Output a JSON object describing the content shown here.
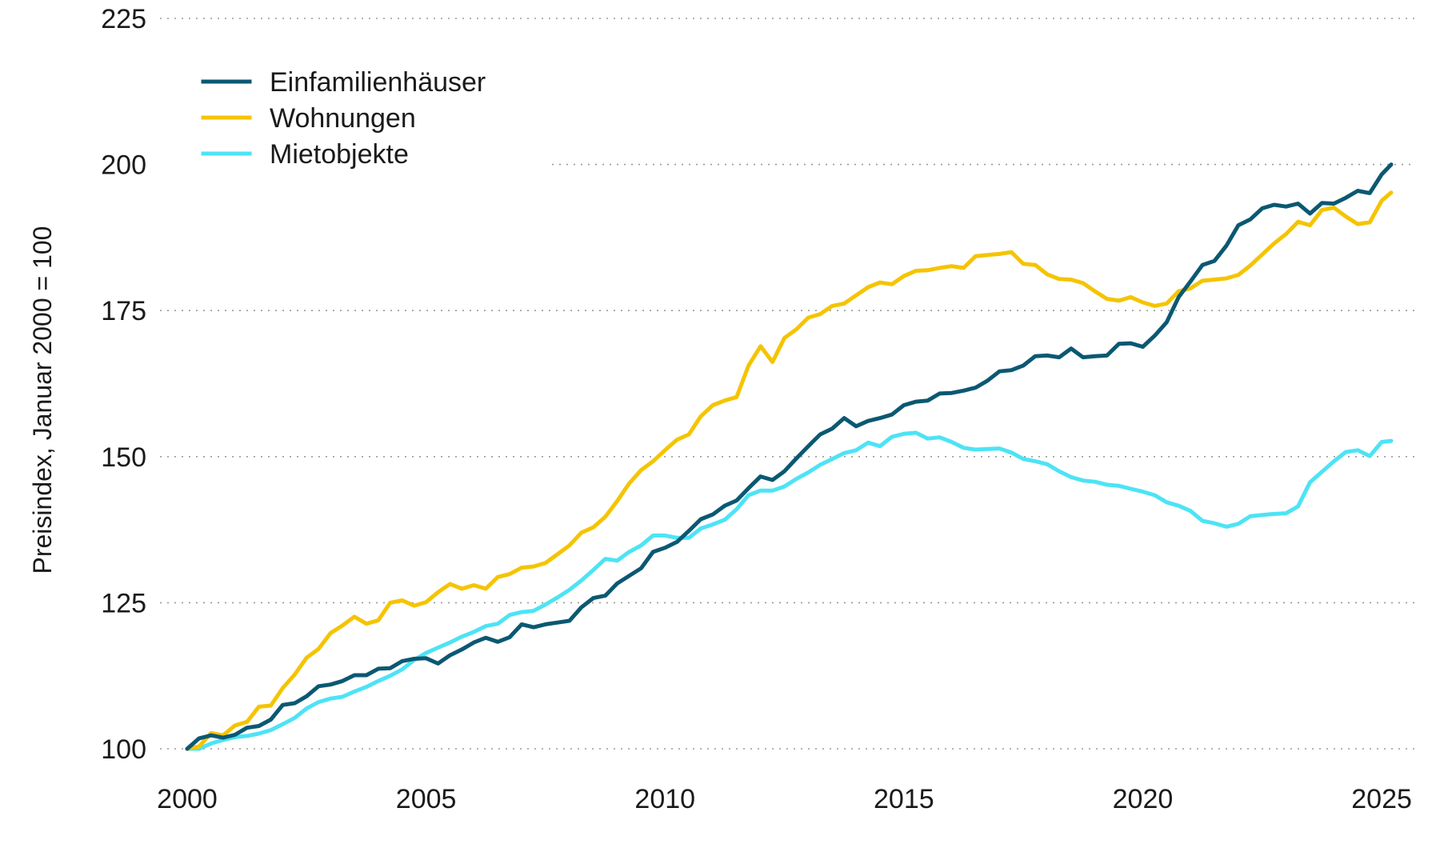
{
  "chart_data": {
    "type": "line",
    "title": "",
    "xlabel": "",
    "ylabel": "Preisindex, Januar 2000 = 100",
    "xlim": [
      2000,
      2025.3
    ],
    "ylim": [
      100,
      225
    ],
    "grid": true,
    "legend_position": "top-left",
    "x_ticks": [
      {
        "value": 2000,
        "label": "2000"
      },
      {
        "value": 2005,
        "label": "2005"
      },
      {
        "value": 2010,
        "label": "2010"
      },
      {
        "value": 2015,
        "label": "2015"
      },
      {
        "value": 2020,
        "label": "2020"
      },
      {
        "value": 2025,
        "label": "2025"
      }
    ],
    "y_ticks": [
      {
        "value": 100,
        "label": "100"
      },
      {
        "value": 125,
        "label": "125"
      },
      {
        "value": 150,
        "label": "150"
      },
      {
        "value": 175,
        "label": "175"
      },
      {
        "value": 200,
        "label": "200"
      },
      {
        "value": 225,
        "label": "225"
      }
    ],
    "series": [
      {
        "name": "Einfamilienhäuser",
        "color": "#0b5872",
        "x": [
          2000,
          2000.25,
          2000.5,
          2000.75,
          2001,
          2001.25,
          2001.5,
          2001.75,
          2002,
          2002.25,
          2002.5,
          2002.75,
          2003,
          2003.25,
          2003.5,
          2003.75,
          2004,
          2004.25,
          2004.5,
          2004.75,
          2005,
          2005.25,
          2005.5,
          2005.75,
          2006,
          2006.25,
          2006.5,
          2006.75,
          2007,
          2007.25,
          2007.5,
          2007.75,
          2008,
          2008.25,
          2008.5,
          2008.75,
          2009,
          2009.25,
          2009.5,
          2009.75,
          2010,
          2010.25,
          2010.5,
          2010.75,
          2011,
          2011.25,
          2011.5,
          2011.75,
          2012,
          2012.25,
          2012.5,
          2012.75,
          2013,
          2013.25,
          2013.5,
          2013.75,
          2014,
          2014.25,
          2014.5,
          2014.75,
          2015,
          2015.25,
          2015.5,
          2015.75,
          2016,
          2016.25,
          2016.5,
          2016.75,
          2017,
          2017.25,
          2017.5,
          2017.75,
          2018,
          2018.25,
          2018.5,
          2018.75,
          2019,
          2019.25,
          2019.5,
          2019.75,
          2020,
          2020.25,
          2020.5,
          2020.75,
          2021,
          2021.25,
          2021.5,
          2021.75,
          2022,
          2022.25,
          2022.5,
          2022.75,
          2023,
          2023.25,
          2023.5,
          2023.75,
          2024,
          2024.25,
          2024.5,
          2024.75,
          2025,
          2025.2
        ],
        "values": [
          100.0,
          101.8,
          102.3,
          101.9,
          102.4,
          103.6,
          103.9,
          105.0,
          107.5,
          107.8,
          109.0,
          110.7,
          111.0,
          111.6,
          112.6,
          112.6,
          113.7,
          113.8,
          115.0,
          115.4,
          115.5,
          114.6,
          116.0,
          117.0,
          118.2,
          119.0,
          118.3,
          119.1,
          121.3,
          120.8,
          121.3,
          121.6,
          121.9,
          124.2,
          125.8,
          126.2,
          128.3,
          129.6,
          130.9,
          133.7,
          134.4,
          135.4,
          137.3,
          139.3,
          140.1,
          141.6,
          142.5,
          144.6,
          146.6,
          146.0,
          147.5,
          149.7,
          151.8,
          153.8,
          154.8,
          156.6,
          155.2,
          156.1,
          156.6,
          157.2,
          158.8,
          159.4,
          159.6,
          160.8,
          160.9,
          161.3,
          161.8,
          163.0,
          164.6,
          164.8,
          165.6,
          167.2,
          167.3,
          167.0,
          168.5,
          167.0,
          167.2,
          167.3,
          169.3,
          169.4,
          168.8,
          170.7,
          173.0,
          177.3,
          180.0,
          182.8,
          183.5,
          186.1,
          189.6,
          190.6,
          192.5,
          193.1,
          192.8,
          193.3,
          191.6,
          193.4,
          193.3,
          194.3,
          195.5,
          195.1,
          198.3,
          200.0
        ]
      },
      {
        "name": "Wohnungen",
        "color": "#f5c400",
        "x": [
          2000,
          2000.25,
          2000.5,
          2000.75,
          2001,
          2001.25,
          2001.5,
          2001.75,
          2002,
          2002.25,
          2002.5,
          2002.75,
          2003,
          2003.25,
          2003.5,
          2003.75,
          2004,
          2004.25,
          2004.5,
          2004.75,
          2005,
          2005.25,
          2005.5,
          2005.75,
          2006,
          2006.25,
          2006.5,
          2006.75,
          2007,
          2007.25,
          2007.5,
          2007.75,
          2008,
          2008.25,
          2008.5,
          2008.75,
          2009,
          2009.25,
          2009.5,
          2009.75,
          2010,
          2010.25,
          2010.5,
          2010.75,
          2011,
          2011.25,
          2011.5,
          2011.75,
          2012,
          2012.25,
          2012.5,
          2012.75,
          2013,
          2013.25,
          2013.5,
          2013.75,
          2014,
          2014.25,
          2014.5,
          2014.75,
          2015,
          2015.25,
          2015.5,
          2015.75,
          2016,
          2016.25,
          2016.5,
          2016.75,
          2017,
          2017.25,
          2017.5,
          2017.75,
          2018,
          2018.25,
          2018.5,
          2018.75,
          2019,
          2019.25,
          2019.5,
          2019.75,
          2020,
          2020.25,
          2020.5,
          2020.75,
          2021,
          2021.25,
          2021.5,
          2021.75,
          2022,
          2022.25,
          2022.5,
          2022.75,
          2023,
          2023.25,
          2023.5,
          2023.75,
          2024,
          2024.25,
          2024.5,
          2024.75,
          2025,
          2025.2
        ],
        "values": [
          100.0,
          100.4,
          102.7,
          102.3,
          104.0,
          104.6,
          107.2,
          107.4,
          110.4,
          112.7,
          115.6,
          117.1,
          119.8,
          121.1,
          122.6,
          121.4,
          122.0,
          125.0,
          125.4,
          124.5,
          125.1,
          126.8,
          128.2,
          127.4,
          128.0,
          127.4,
          129.4,
          129.9,
          131.0,
          131.2,
          131.8,
          133.3,
          134.8,
          137.0,
          137.9,
          139.7,
          142.4,
          145.4,
          147.7,
          149.2,
          151.1,
          152.9,
          153.8,
          156.9,
          158.8,
          159.6,
          160.2,
          165.6,
          168.9,
          166.2,
          170.3,
          171.8,
          173.8,
          174.4,
          175.8,
          176.2,
          177.6,
          179.0,
          179.8,
          179.5,
          180.9,
          181.8,
          181.9,
          182.3,
          182.6,
          182.3,
          184.3,
          184.5,
          184.7,
          185.0,
          183.0,
          182.8,
          181.2,
          180.4,
          180.3,
          179.7,
          178.3,
          177.0,
          176.7,
          177.3,
          176.4,
          175.8,
          176.2,
          178.3,
          178.8,
          180.1,
          180.3,
          180.5,
          181.1,
          182.7,
          184.6,
          186.5,
          188.1,
          190.2,
          189.6,
          192.2,
          192.6,
          191.1,
          189.8,
          190.1,
          193.8,
          195.2
        ]
      },
      {
        "name": "Mietobjekte",
        "color": "#4de3f5",
        "x": [
          2000,
          2000.25,
          2000.5,
          2000.75,
          2001,
          2001.25,
          2001.5,
          2001.75,
          2002,
          2002.25,
          2002.5,
          2002.75,
          2003,
          2003.25,
          2003.5,
          2003.75,
          2004,
          2004.25,
          2004.5,
          2004.75,
          2005,
          2005.25,
          2005.5,
          2005.75,
          2006,
          2006.25,
          2006.5,
          2006.75,
          2007,
          2007.25,
          2007.5,
          2007.75,
          2008,
          2008.25,
          2008.5,
          2008.75,
          2009,
          2009.25,
          2009.5,
          2009.75,
          2010,
          2010.25,
          2010.5,
          2010.75,
          2011,
          2011.25,
          2011.5,
          2011.75,
          2012,
          2012.25,
          2012.5,
          2012.75,
          2013,
          2013.25,
          2013.5,
          2013.75,
          2014,
          2014.25,
          2014.5,
          2014.75,
          2015,
          2015.25,
          2015.5,
          2015.75,
          2016,
          2016.25,
          2016.5,
          2016.75,
          2017,
          2017.25,
          2017.5,
          2017.75,
          2018,
          2018.25,
          2018.5,
          2018.75,
          2019,
          2019.25,
          2019.5,
          2019.75,
          2020,
          2020.25,
          2020.5,
          2020.75,
          2021,
          2021.25,
          2021.5,
          2021.75,
          2022,
          2022.25,
          2022.5,
          2022.75,
          2023,
          2023.25,
          2023.5,
          2023.75,
          2024,
          2024.25,
          2024.5,
          2024.75,
          2025,
          2025.2
        ],
        "values": [
          100.0,
          100.0,
          100.9,
          101.5,
          102.0,
          102.2,
          102.6,
          103.2,
          104.2,
          105.3,
          106.9,
          108.0,
          108.6,
          108.9,
          109.8,
          110.6,
          111.6,
          112.5,
          113.6,
          115.2,
          116.4,
          117.3,
          118.2,
          119.2,
          120.0,
          121.0,
          121.4,
          122.9,
          123.4,
          123.6,
          124.7,
          125.9,
          127.2,
          128.8,
          130.6,
          132.5,
          132.2,
          133.7,
          134.8,
          136.5,
          136.5,
          136.1,
          136.1,
          137.7,
          138.4,
          139.2,
          141.0,
          143.4,
          144.2,
          144.2,
          144.9,
          146.2,
          147.3,
          148.6,
          149.6,
          150.6,
          151.1,
          152.4,
          151.8,
          153.4,
          153.9,
          154.1,
          153.1,
          153.3,
          152.5,
          151.5,
          151.2,
          151.3,
          151.4,
          150.7,
          149.6,
          149.2,
          148.7,
          147.5,
          146.5,
          145.9,
          145.7,
          145.2,
          145.0,
          144.5,
          144.0,
          143.4,
          142.2,
          141.6,
          140.7,
          139.0,
          138.6,
          138.0,
          138.5,
          139.8,
          140.0,
          140.2,
          140.3,
          141.5,
          145.6,
          147.4,
          149.2,
          150.8,
          151.1,
          150.1,
          152.5,
          152.7
        ]
      }
    ]
  }
}
